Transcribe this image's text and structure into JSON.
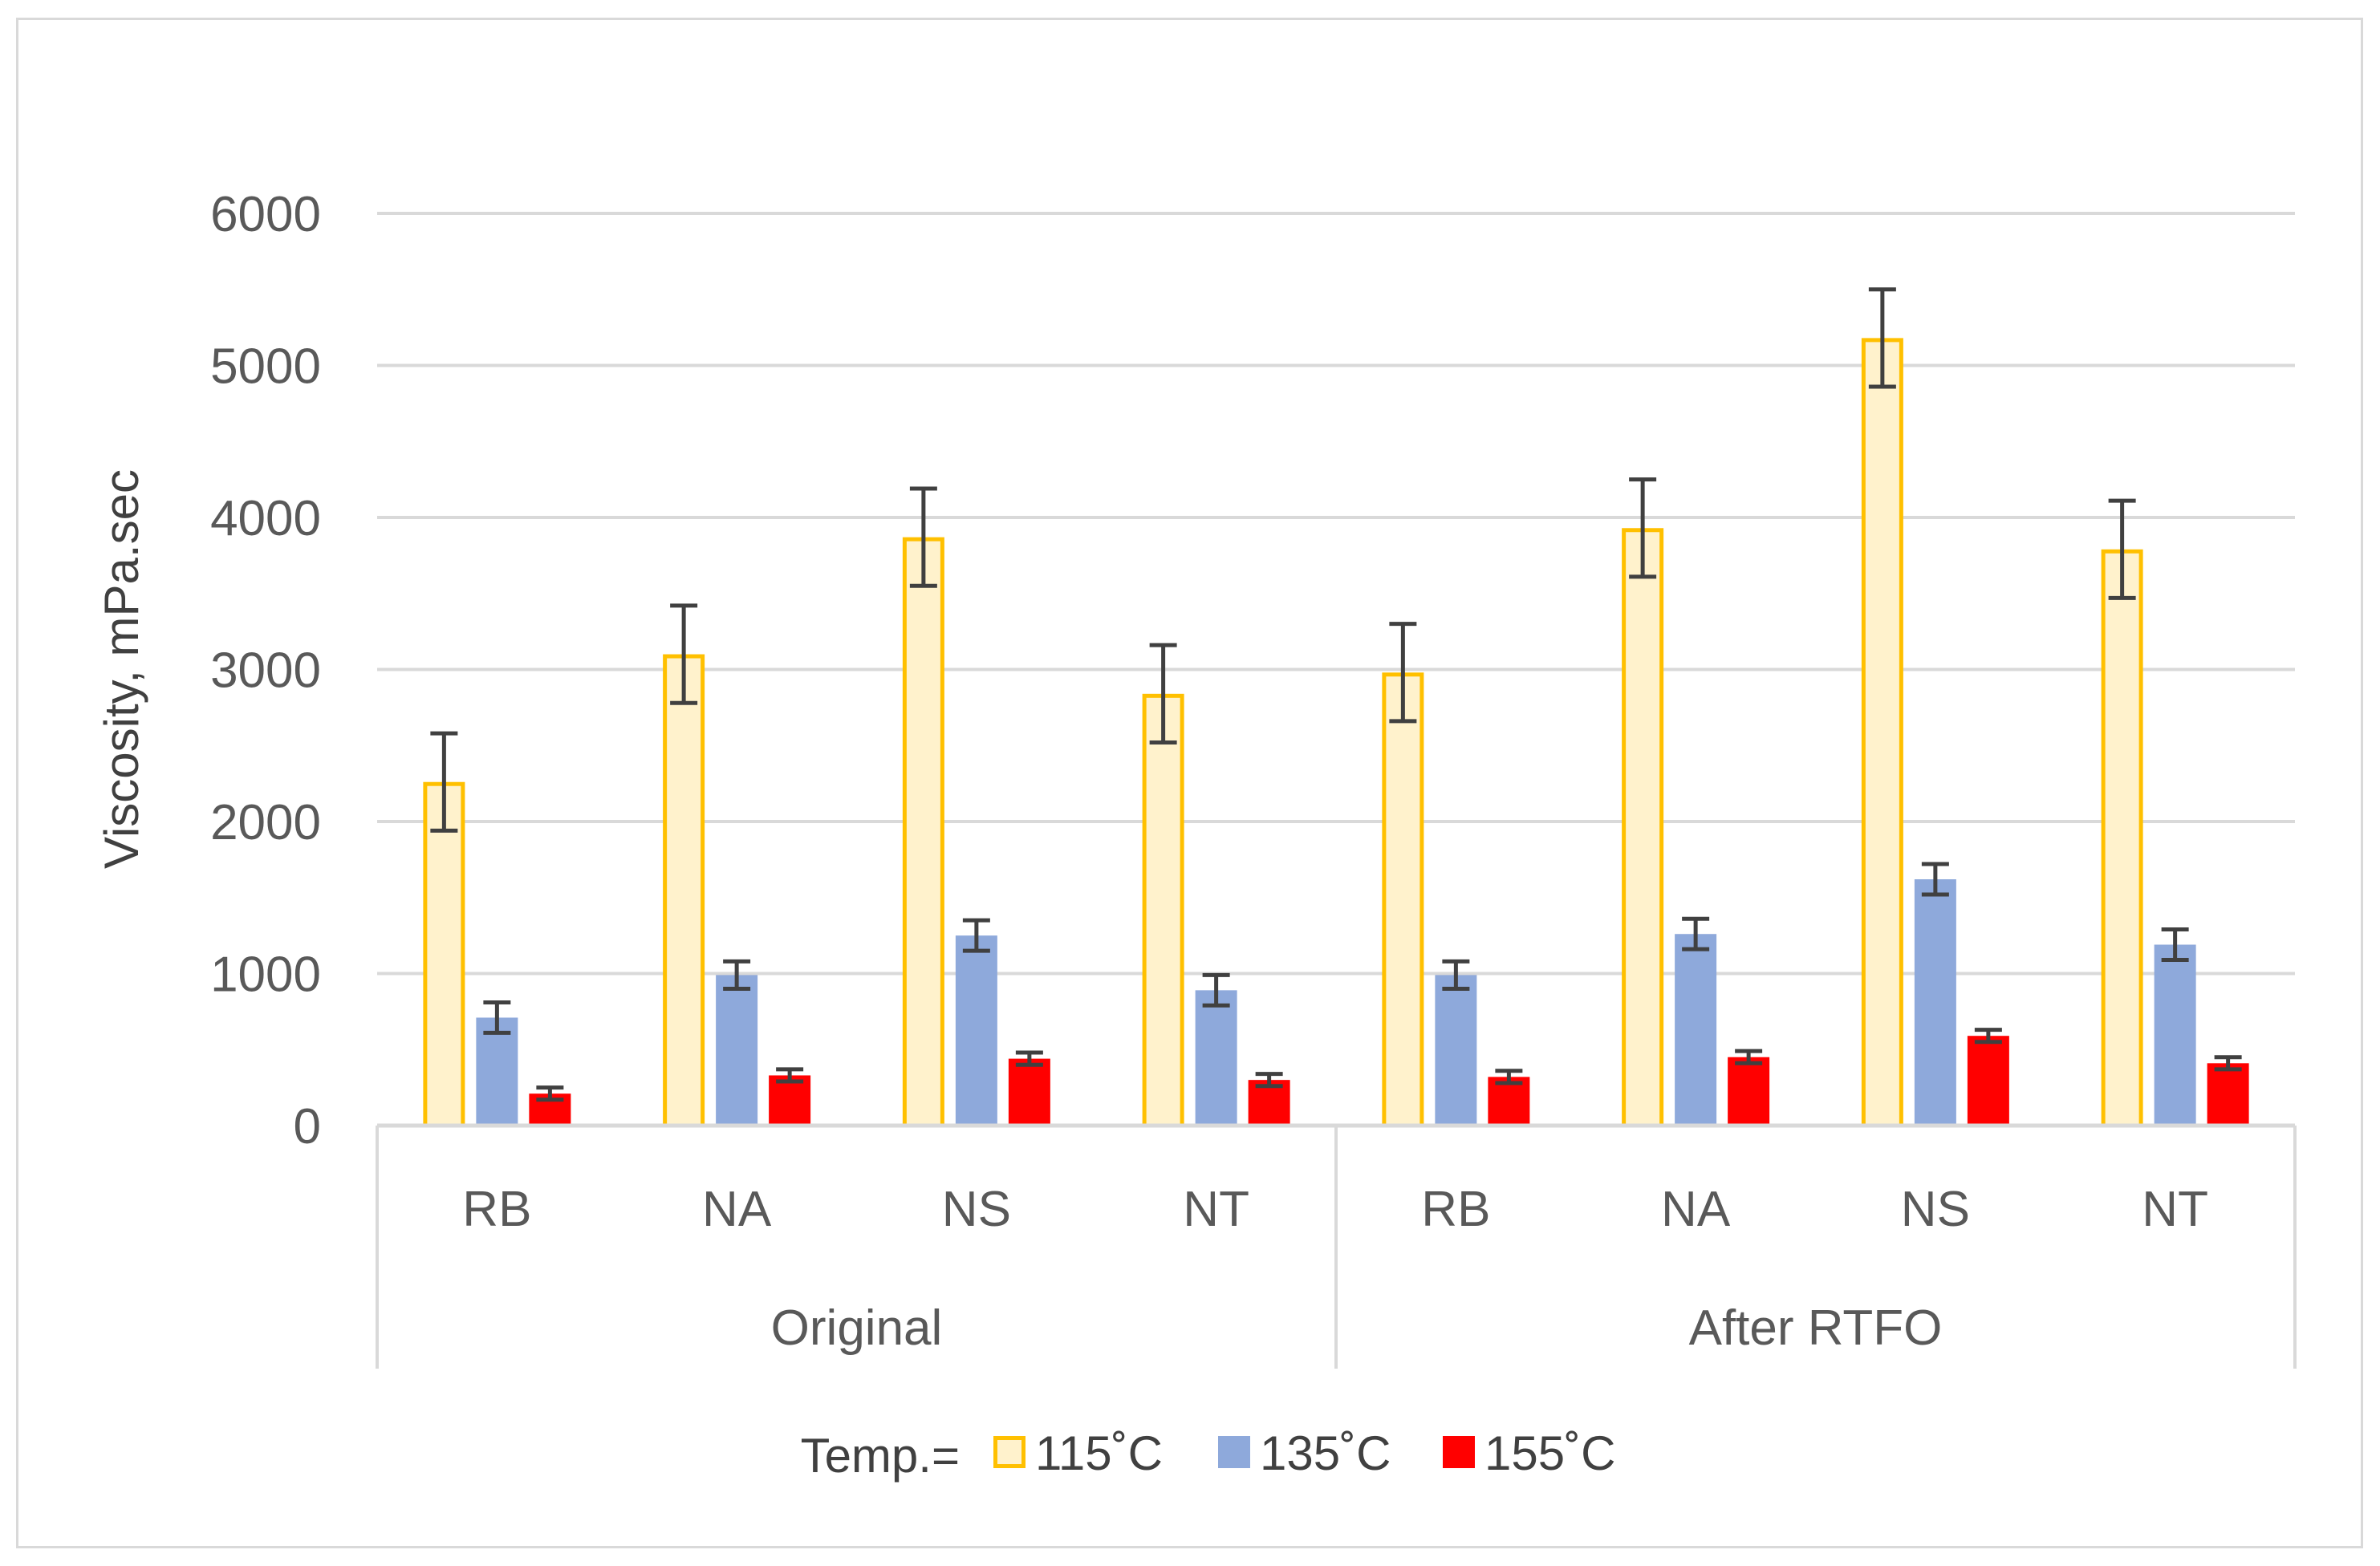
{
  "chart_data": {
    "type": "bar",
    "title": "",
    "ylabel": "Viscosity, mPa.sec",
    "xlabel": "",
    "ylim": [
      0,
      6000
    ],
    "yticks": [
      0,
      1000,
      2000,
      3000,
      4000,
      5000,
      6000
    ],
    "grid": true,
    "groups": [
      {
        "label": "Original",
        "categories": [
          "RB",
          "NA",
          "NS",
          "NT"
        ]
      },
      {
        "label": "After RTFO",
        "categories": [
          "RB",
          "NA",
          "NS",
          "NT"
        ]
      }
    ],
    "legend": {
      "title": "Temp.=",
      "placement": "bottom"
    },
    "series": [
      {
        "name": "115˚C",
        "fill": "#FFF2CC",
        "stroke": "#FFC000",
        "values": [
          2260,
          3100,
          3870,
          2840,
          2980,
          3930,
          5180,
          3790
        ],
        "errors": [
          320,
          320,
          320,
          320,
          320,
          320,
          320,
          320
        ]
      },
      {
        "name": "135˚C",
        "fill": "#8EA9DB",
        "stroke": "#8EA9DB",
        "values": [
          710,
          990,
          1250,
          890,
          990,
          1260,
          1620,
          1190
        ],
        "errors": [
          100,
          90,
          100,
          100,
          90,
          100,
          100,
          100
        ]
      },
      {
        "name": "155˚C",
        "fill": "#FF0000",
        "stroke": "#FF0000",
        "values": [
          210,
          330,
          440,
          300,
          320,
          450,
          590,
          410
        ],
        "errors": [
          40,
          40,
          40,
          40,
          40,
          40,
          40,
          40
        ]
      }
    ]
  }
}
